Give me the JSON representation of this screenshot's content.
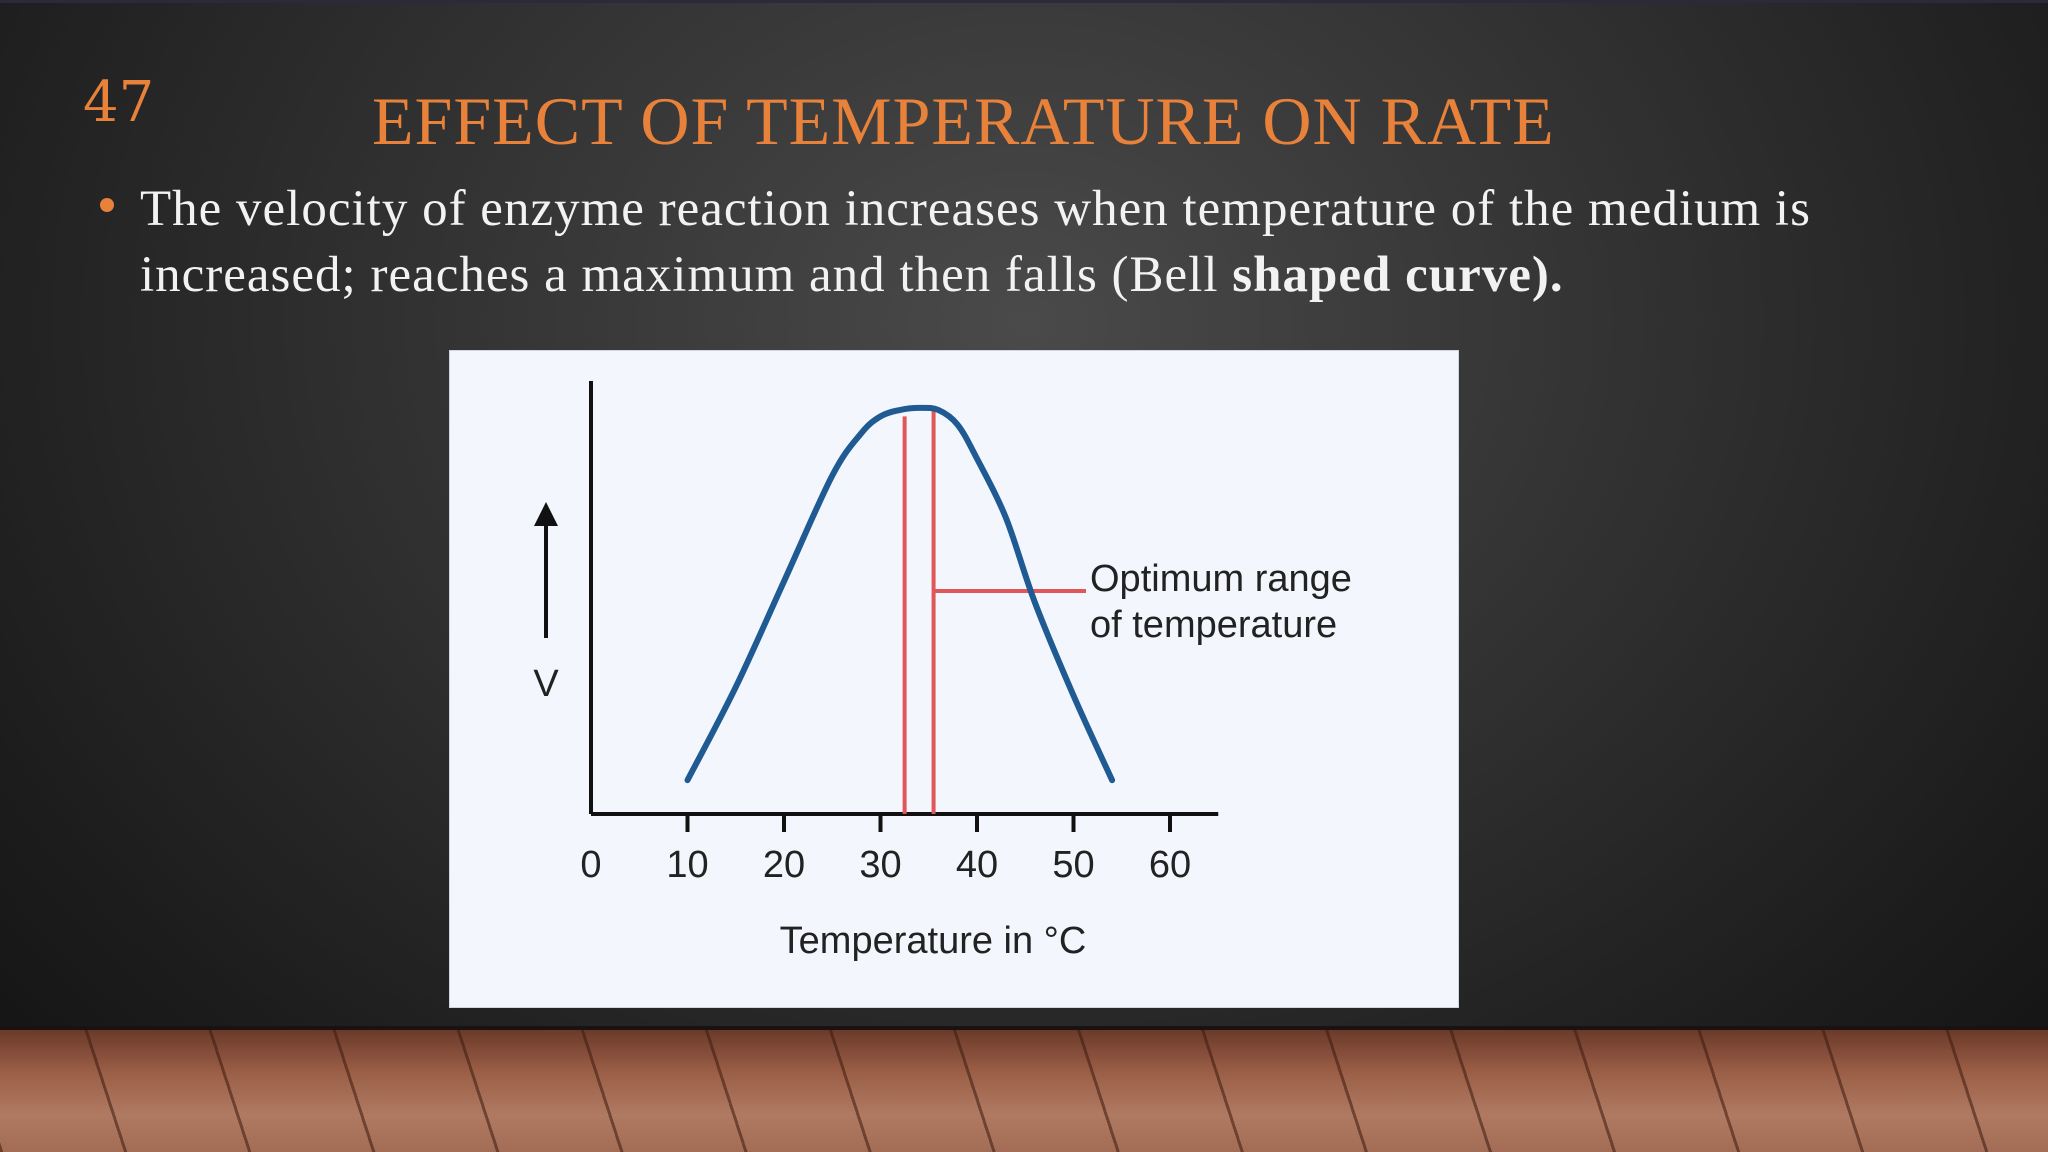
{
  "slide": {
    "number": "47",
    "title": "EFFECT OF TEMPERATURE ON RATE",
    "bullet_text_normal": "The velocity of enzyme reaction increases when temperature of the medium is increased; reaches a maximum and then falls (Bell ",
    "bullet_text_bold": "shaped curve).",
    "colors": {
      "accent": "#e8823a",
      "curve": "#1f5a93",
      "marker": "#e0575a"
    }
  },
  "chart_data": {
    "type": "line",
    "xlabel": "Temperature in °C",
    "ylabel": "V",
    "x_ticks": [
      0,
      10,
      20,
      30,
      40,
      50,
      60
    ],
    "xlim": [
      0,
      65
    ],
    "ylim": [
      0,
      1
    ],
    "series": [
      {
        "x": [
          10,
          15,
          20,
          25,
          28,
          30,
          32,
          34,
          36,
          38,
          40,
          43,
          46,
          50,
          54
        ],
        "y": [
          0.08,
          0.3,
          0.55,
          0.8,
          0.9,
          0.94,
          0.955,
          0.96,
          0.955,
          0.92,
          0.84,
          0.7,
          0.5,
          0.28,
          0.08
        ]
      }
    ],
    "optimum_range": [
      32.5,
      35.5
    ],
    "annotation": {
      "line1": "Optimum range",
      "line2": "of temperature"
    }
  }
}
